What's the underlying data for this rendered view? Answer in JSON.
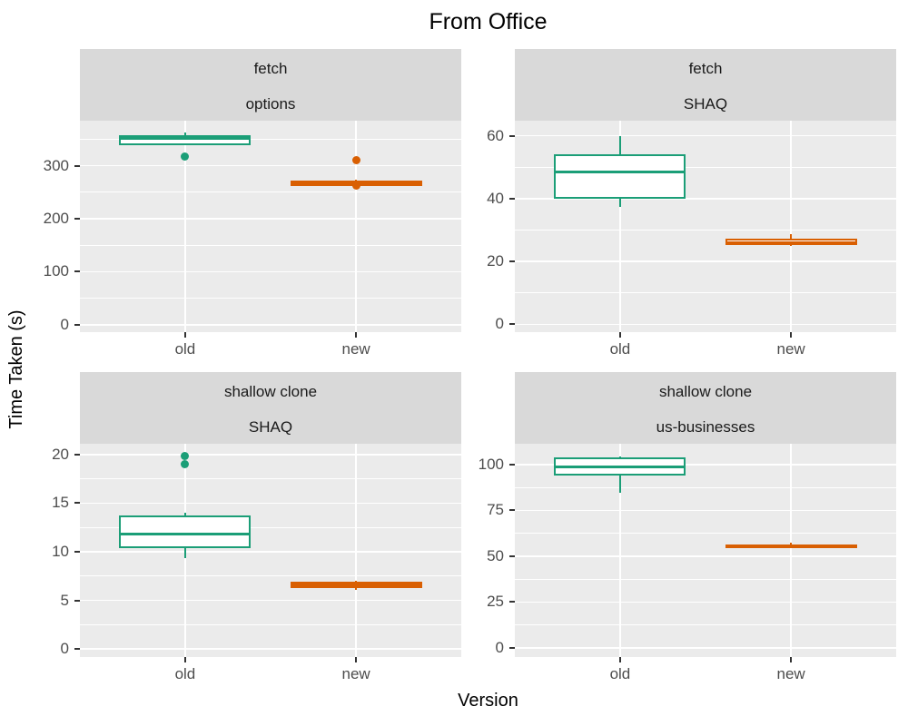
{
  "title": "From Office",
  "y_axis_title": "Time Taken (s)",
  "x_axis_title": "Version",
  "colors": {
    "old": "#1B9E77",
    "new": "#D95F02",
    "panel_bg": "#EBEBEB",
    "strip_bg": "#D9D9D9",
    "grid": "#FFFFFF",
    "tick_label": "#4d4d4d",
    "tick_mark": "#333333",
    "strip_text": "#1a1a1a",
    "title_text": "#000000"
  },
  "chart_data": {
    "type": "boxplot",
    "facet_layout": "2x2 grid, strip labels on top of each panel (two lines)",
    "legend_position": "none",
    "categories": [
      "old",
      "new"
    ],
    "facets": [
      {
        "strip_line1": "fetch",
        "strip_line2": "options",
        "y_ticks": [
          0,
          100,
          200,
          300
        ],
        "ylim": [
          -14,
          385
        ],
        "grid": true,
        "boxes": [
          {
            "category": "old",
            "whisker_low": 338,
            "q1": 338,
            "median": 352,
            "q3": 357,
            "whisker_high": 362,
            "outliers": [
              318
            ]
          },
          {
            "category": "new",
            "whisker_low": 260,
            "q1": 261,
            "median": 266,
            "q3": 272,
            "whisker_high": 273,
            "outliers": [
              310,
              263
            ]
          }
        ]
      },
      {
        "strip_line1": "fetch",
        "strip_line2": "SHAQ",
        "y_ticks": [
          0,
          20,
          40,
          60
        ],
        "ylim": [
          -2.5,
          64.8
        ],
        "grid": true,
        "boxes": [
          {
            "category": "old",
            "whisker_low": 37.5,
            "q1": 40,
            "median": 48.5,
            "q3": 54,
            "whisker_high": 60,
            "outliers": []
          },
          {
            "category": "new",
            "whisker_low": 24.8,
            "q1": 25.2,
            "median": 25.9,
            "q3": 27.3,
            "whisker_high": 28.7,
            "outliers": []
          }
        ]
      },
      {
        "strip_line1": "shallow clone",
        "strip_line2": "SHAQ",
        "y_ticks": [
          0,
          5,
          10,
          15,
          20
        ],
        "ylim": [
          -0.84,
          21.12
        ],
        "grid": true,
        "boxes": [
          {
            "category": "old",
            "whisker_low": 9.3,
            "q1": 10.4,
            "median": 11.8,
            "q3": 13.7,
            "whisker_high": 14.0,
            "outliers": [
              19.9,
              19.0
            ]
          },
          {
            "category": "new",
            "whisker_low": 6.1,
            "q1": 6.3,
            "median": 6.6,
            "q3": 6.9,
            "whisker_high": 7.0,
            "outliers": []
          }
        ]
      },
      {
        "strip_line1": "shallow clone",
        "strip_line2": "us-businesses",
        "y_ticks": [
          0,
          25,
          50,
          75,
          100
        ],
        "ylim": [
          -4.97,
          111.35
        ],
        "grid": true,
        "boxes": [
          {
            "category": "old",
            "whisker_low": 84.8,
            "q1": 94.2,
            "median": 98.7,
            "q3": 103.7,
            "whisker_high": 104.5,
            "outliers": []
          },
          {
            "category": "new",
            "whisker_low": 54.3,
            "q1": 54.7,
            "median": 55.6,
            "q3": 56.6,
            "whisker_high": 57.2,
            "outliers": []
          }
        ]
      }
    ]
  }
}
